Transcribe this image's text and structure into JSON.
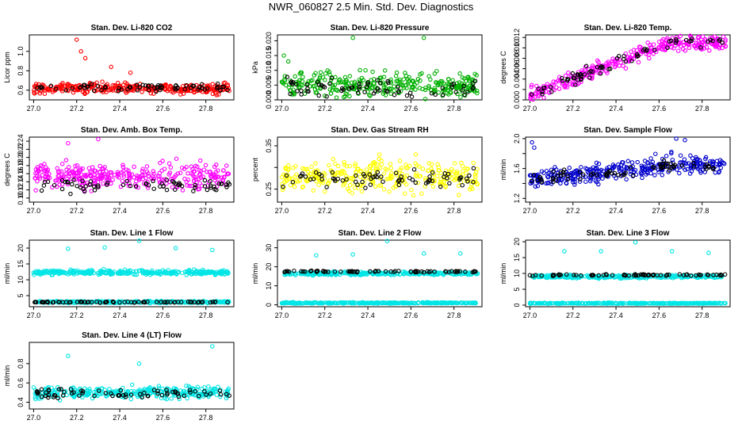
{
  "title": "NWR_060827  2.5 Min. Std. Dev. Diagnostics",
  "chart_data": [
    {
      "type": "scatter",
      "title": "Stan. Dev. Li-820 CO2",
      "ylabel": "Licor ppm",
      "xlim": [
        26.98,
        27.93
      ],
      "ylim": [
        0.5,
        1.17
      ],
      "xticks": [
        27.0,
        27.2,
        27.4,
        27.6,
        27.8
      ],
      "xtick_labels": [
        "27.0",
        "27.2",
        "27.4",
        "27.6",
        "27.8"
      ],
      "yticks": [
        0.6,
        0.8,
        1.0
      ],
      "ytick_labels": [
        "0.6",
        "0.8",
        "1.0"
      ],
      "series": [
        {
          "color": "#ff0000",
          "x_range": [
            27.0,
            27.91
          ],
          "baseline": 0.62,
          "spread": 0.05,
          "outliers": [
            [
              27.2,
              1.12
            ],
            [
              27.22,
              1.0
            ],
            [
              27.24,
              0.93
            ],
            [
              27.36,
              0.84
            ],
            [
              27.45,
              0.78
            ],
            [
              27.85,
              0.55
            ]
          ]
        },
        {
          "color": "#000000",
          "x_range": [
            27.0,
            27.91
          ],
          "baseline": 0.63,
          "spread": 0.04,
          "outliers": []
        }
      ]
    },
    {
      "type": "scatter",
      "title": "Stan. Dev. Li-820 Pressure",
      "ylabel": "kPa",
      "xlim": [
        26.98,
        27.93
      ],
      "ylim": [
        0.0,
        0.022
      ],
      "xticks": [
        27.0,
        27.2,
        27.4,
        27.6,
        27.8
      ],
      "xtick_labels": [
        "27.0",
        "27.2",
        "27.4",
        "27.6",
        "27.8"
      ],
      "yticks": [
        0.0,
        0.005,
        0.01,
        0.015,
        0.02
      ],
      "ytick_labels": [
        "0.000",
        "0.005",
        "0.010",
        "0.015",
        "0.020"
      ],
      "series": [
        {
          "color": "#00b000",
          "x_range": [
            27.0,
            27.91
          ],
          "baseline": 0.005,
          "spread": 0.004,
          "outliers": [
            [
              27.33,
              0.021
            ],
            [
              27.66,
              0.021
            ],
            [
              27.01,
              0.015
            ],
            [
              27.03,
              0.013
            ]
          ]
        },
        {
          "color": "#000000",
          "x_range": [
            27.0,
            27.91
          ],
          "baseline": 0.004,
          "spread": 0.003,
          "outliers": []
        }
      ]
    },
    {
      "type": "scatter",
      "title": "Stan. Dev. Li-820 Temp.",
      "ylabel": "degrees C",
      "xlim": [
        26.98,
        27.93
      ],
      "ylim": [
        0.0,
        0.0125
      ],
      "xticks": [
        27.0,
        27.2,
        27.4,
        27.6,
        27.8
      ],
      "xtick_labels": [
        "27.0",
        "27.2",
        "27.4",
        "27.6",
        "27.8"
      ],
      "yticks": [
        0.0,
        0.002,
        0.004,
        0.006,
        0.008,
        0.01,
        0.012
      ],
      "ytick_labels": [
        "0.000",
        "",
        "0.004",
        "0.006",
        "0.008",
        "0.010",
        "0.012"
      ],
      "series": [
        {
          "color": "#ff00ff",
          "x_range": [
            27.0,
            27.91
          ],
          "trend": [
            0.001,
            0.011
          ],
          "spread": 0.0015,
          "outliers": []
        },
        {
          "color": "#000000",
          "x_range": [
            27.0,
            27.91
          ],
          "trend": [
            0.001,
            0.011
          ],
          "spread": 0.001,
          "outliers": []
        }
      ]
    },
    {
      "type": "scatter",
      "title": "Stan. Dev. Amb. Box Temp.",
      "ylabel": "degrees C",
      "xlim": [
        26.98,
        27.93
      ],
      "ylim": [
        0.09,
        0.25
      ],
      "xticks": [
        27.0,
        27.2,
        27.4,
        27.6,
        27.8
      ],
      "xtick_labels": [
        "27.0",
        "27.2",
        "27.4",
        "27.6",
        "27.8"
      ],
      "yticks": [
        0.1,
        0.12,
        0.14,
        0.16,
        0.18,
        0.2,
        0.22,
        0.24
      ],
      "ytick_labels": [
        "0.10",
        "0.12",
        "0.14",
        "0.16",
        "0.18",
        "0.20",
        "0.22",
        "0.24"
      ],
      "series": [
        {
          "color": "#ff00ff",
          "x_range": [
            27.0,
            27.91
          ],
          "baseline": 0.155,
          "spread": 0.03,
          "outliers": [
            [
              27.16,
              0.235
            ],
            [
              27.3,
              0.245
            ]
          ]
        },
        {
          "color": "#000000",
          "x_range": [
            27.0,
            27.91
          ],
          "baseline": 0.13,
          "spread": 0.015,
          "outliers": []
        }
      ]
    },
    {
      "type": "scatter",
      "title": "Stan. Dev. Gas Stream RH",
      "ylabel": "percent",
      "xlim": [
        26.98,
        27.93
      ],
      "ylim": [
        0.22,
        0.37
      ],
      "xticks": [
        27.0,
        27.2,
        27.4,
        27.6,
        27.8
      ],
      "xtick_labels": [
        "27.0",
        "27.2",
        "27.4",
        "27.6",
        "27.8"
      ],
      "yticks": [
        0.25,
        0.3,
        0.35
      ],
      "ytick_labels": [
        "0.25",
        "",
        "0.35"
      ],
      "series": [
        {
          "color": "#ffff00",
          "x_range": [
            27.0,
            27.91
          ],
          "baseline": 0.28,
          "spread": 0.035,
          "outliers": []
        },
        {
          "color": "#000000",
          "x_range": [
            27.0,
            27.91
          ],
          "baseline": 0.275,
          "spread": 0.02,
          "outliers": []
        }
      ]
    },
    {
      "type": "scatter",
      "title": "Stan. Dev. Sample Flow",
      "ylabel": "ml/min",
      "xlim": [
        26.98,
        27.93
      ],
      "ylim": [
        1.15,
        2.02
      ],
      "xticks": [
        27.0,
        27.2,
        27.4,
        27.6,
        27.8
      ],
      "xtick_labels": [
        "27.0",
        "27.2",
        "27.4",
        "27.6",
        "27.8"
      ],
      "yticks": [
        1.2,
        1.4,
        1.6,
        1.8,
        2.0
      ],
      "ytick_labels": [
        "1.2",
        "",
        "1.6",
        "",
        "2.0"
      ],
      "series": [
        {
          "color": "#0000cc",
          "x_range": [
            27.0,
            27.91
          ],
          "trend": [
            1.45,
            1.65
          ],
          "spread": 0.12,
          "outliers": [
            [
              27.01,
              1.95
            ],
            [
              27.02,
              1.88
            ],
            [
              27.68,
              2.0
            ],
            [
              27.72,
              1.98
            ]
          ]
        },
        {
          "color": "#000000",
          "x_range": [
            27.0,
            27.91
          ],
          "trend": [
            1.45,
            1.63
          ],
          "spread": 0.08,
          "outliers": []
        }
      ]
    },
    {
      "type": "scatter",
      "title": "Stan. Dev. Line 1 Flow",
      "ylabel": "ml/min",
      "xlim": [
        26.98,
        27.93
      ],
      "ylim": [
        1.5,
        22.5
      ],
      "xticks": [
        27.0,
        27.2,
        27.4,
        27.6,
        27.8
      ],
      "xtick_labels": [
        "27.0",
        "27.2",
        "27.4",
        "27.6",
        "27.8"
      ],
      "yticks": [
        5,
        10,
        15,
        20
      ],
      "ytick_labels": [
        "5",
        "10",
        "15",
        "20"
      ],
      "series": [
        {
          "color": "#00e5e5",
          "x_range": [
            27.0,
            27.91
          ],
          "baseline": 12.3,
          "spread": 0.7,
          "outliers": [
            [
              27.16,
              19.8
            ],
            [
              27.33,
              20.2
            ],
            [
              27.49,
              22.3
            ],
            [
              27.66,
              20.0
            ],
            [
              27.83,
              19.4
            ]
          ]
        },
        {
          "color": "#00e5e5",
          "x_range": [
            27.0,
            27.91
          ],
          "baseline": 3.0,
          "spread": 0.3,
          "outliers": []
        },
        {
          "color": "#000000",
          "x_range": [
            27.0,
            27.91
          ],
          "baseline": 2.95,
          "spread": 0.15,
          "outliers": []
        }
      ]
    },
    {
      "type": "scatter",
      "title": "Stan. Dev. Line 2 Flow",
      "ylabel": "ml/min",
      "xlim": [
        26.98,
        27.93
      ],
      "ylim": [
        -1,
        34
      ],
      "xticks": [
        27.0,
        27.2,
        27.4,
        27.6,
        27.8
      ],
      "xtick_labels": [
        "27.0",
        "27.2",
        "27.4",
        "27.6",
        "27.8"
      ],
      "yticks": [
        0,
        10,
        20,
        30
      ],
      "ytick_labels": [
        "0",
        "10",
        "20",
        "30"
      ],
      "series": [
        {
          "color": "#00e5e5",
          "x_range": [
            27.0,
            27.91
          ],
          "baseline": 16.5,
          "spread": 0.8,
          "outliers": [
            [
              27.16,
              26.0
            ],
            [
              27.33,
              26.5
            ],
            [
              27.49,
              33.5
            ],
            [
              27.66,
              27.0
            ],
            [
              27.83,
              27.0
            ]
          ]
        },
        {
          "color": "#00e5e5",
          "x_range": [
            27.0,
            27.91
          ],
          "baseline": 1.0,
          "spread": 0.3,
          "outliers": []
        },
        {
          "color": "#000000",
          "x_range": [
            27.0,
            27.91
          ],
          "baseline": 17.5,
          "spread": 0.4,
          "outliers": []
        }
      ]
    },
    {
      "type": "scatter",
      "title": "Stan. Dev. Line 3 Flow",
      "ylabel": "ml/min",
      "xlim": [
        26.98,
        27.93
      ],
      "ylim": [
        -0.5,
        20.5
      ],
      "xticks": [
        27.0,
        27.2,
        27.4,
        27.6,
        27.8
      ],
      "xtick_labels": [
        "27.0",
        "27.2",
        "27.4",
        "27.6",
        "27.8"
      ],
      "yticks": [
        0,
        5,
        10,
        15,
        20
      ],
      "ytick_labels": [
        "0",
        "5",
        "10",
        "15",
        "20"
      ],
      "series": [
        {
          "color": "#00e5e5",
          "x_range": [
            27.0,
            27.91
          ],
          "baseline": 9.0,
          "spread": 0.5,
          "outliers": [
            [
              27.16,
              17.0
            ],
            [
              27.33,
              17.0
            ],
            [
              27.49,
              19.8
            ],
            [
              27.66,
              17.0
            ],
            [
              27.83,
              16.5
            ]
          ]
        },
        {
          "color": "#00e5e5",
          "x_range": [
            27.0,
            27.91
          ],
          "baseline": 0.6,
          "spread": 0.15,
          "outliers": []
        },
        {
          "color": "#000000",
          "x_range": [
            27.0,
            27.91
          ],
          "baseline": 9.5,
          "spread": 0.25,
          "outliers": []
        }
      ]
    },
    {
      "type": "scatter",
      "title": "Stan. Dev. Line 4 (LT) Flow",
      "ylabel": "ml/min",
      "xlim": [
        26.98,
        27.93
      ],
      "ylim": [
        0.33,
        1.02
      ],
      "xticks": [
        27.0,
        27.2,
        27.4,
        27.6,
        27.8
      ],
      "xtick_labels": [
        "27.0",
        "27.2",
        "27.4",
        "27.6",
        "27.8"
      ],
      "yticks": [
        0.4,
        0.6,
        0.8
      ],
      "ytick_labels": [
        "0.4",
        "0.6",
        "0.8"
      ],
      "series": [
        {
          "color": "#00e5e5",
          "x_range": [
            27.0,
            27.91
          ],
          "baseline": 0.5,
          "spread": 0.06,
          "outliers": [
            [
              27.16,
              0.88
            ],
            [
              27.49,
              0.8
            ],
            [
              27.83,
              0.98
            ]
          ]
        },
        {
          "color": "#000000",
          "x_range": [
            27.0,
            27.91
          ],
          "baseline": 0.49,
          "spread": 0.05,
          "outliers": []
        }
      ]
    }
  ]
}
